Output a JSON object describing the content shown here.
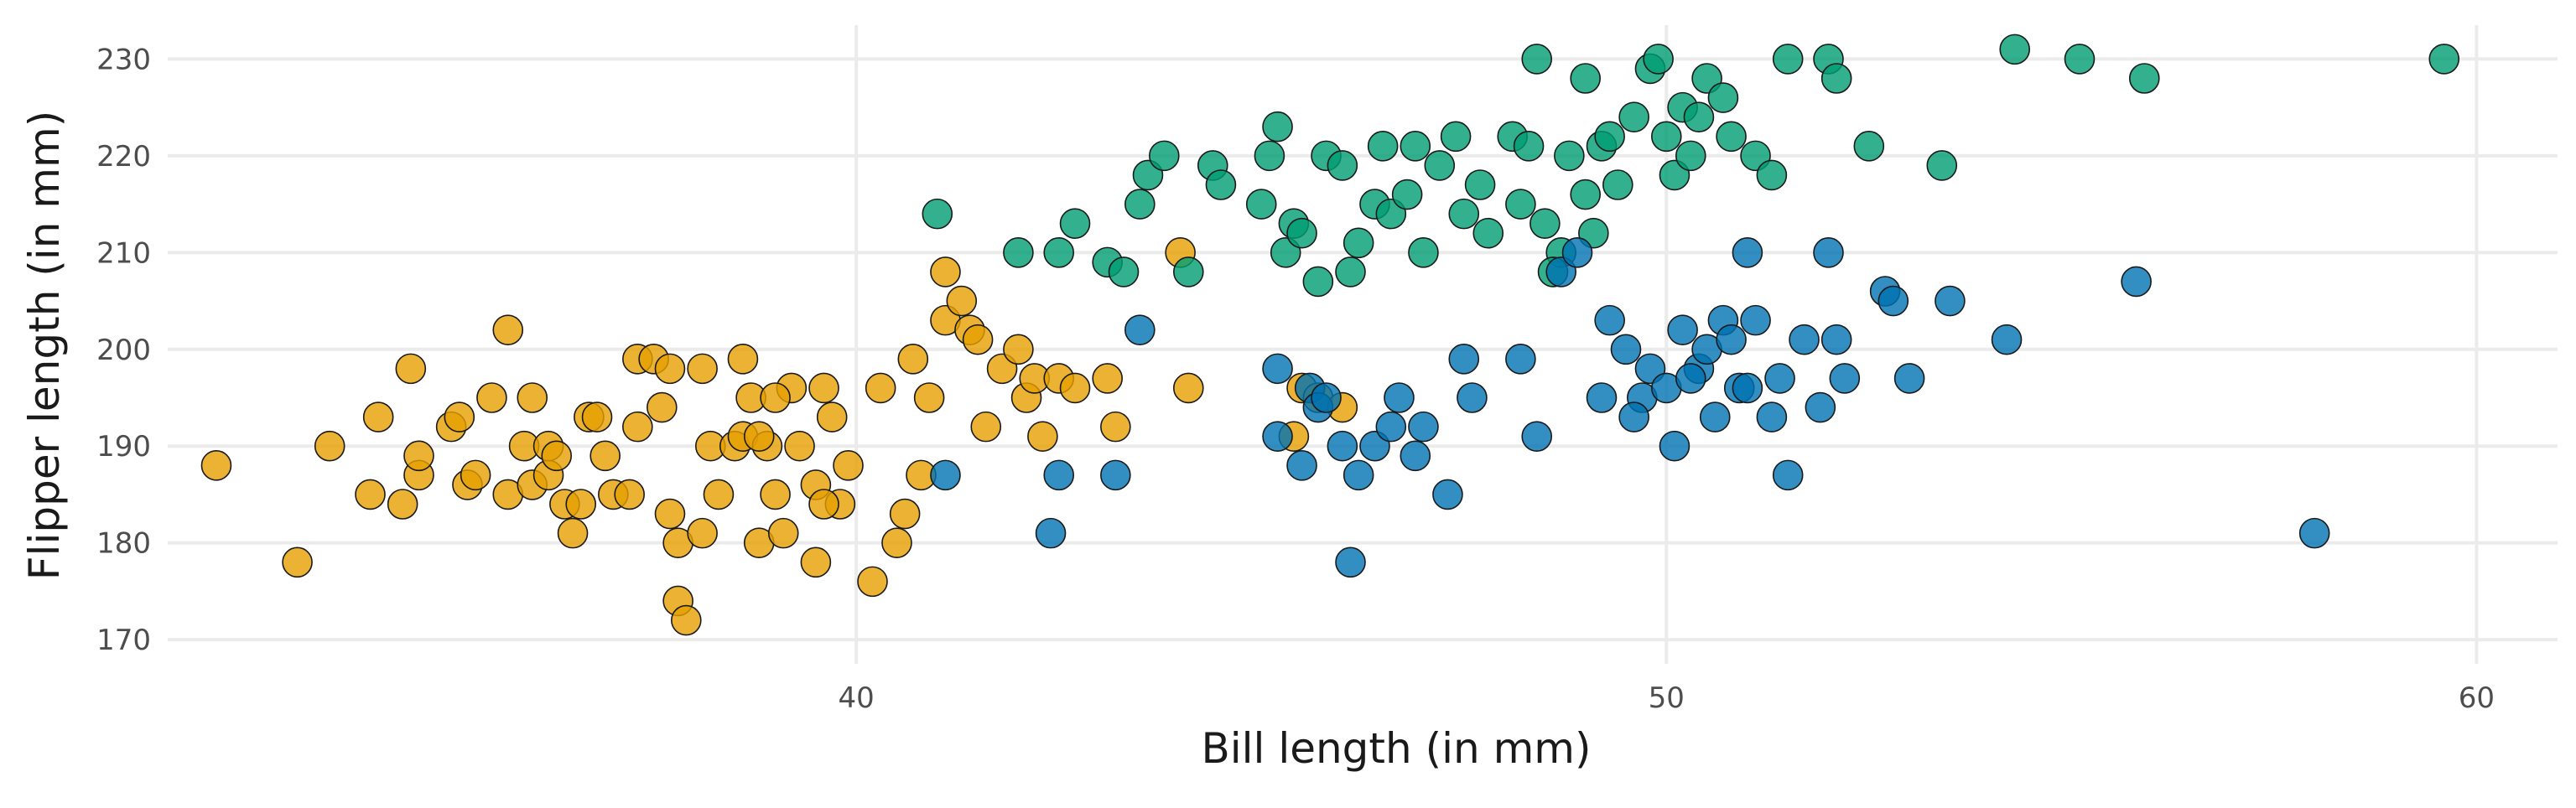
{
  "chart_data": {
    "type": "scatter",
    "xlabel": "Bill length (in mm)",
    "ylabel": "Flipper length (in mm)",
    "xlim": [
      31.5,
      61.0
    ],
    "ylim": [
      167.5,
      233.5
    ],
    "xticks": [
      40,
      50,
      60
    ],
    "yticks": [
      170,
      180,
      190,
      200,
      210,
      220,
      230
    ],
    "grid": true,
    "legend": "none",
    "series": [
      {
        "color": "#E69F00",
        "points": [
          [
            32.1,
            188
          ],
          [
            33.1,
            178
          ],
          [
            33.5,
            190
          ],
          [
            34.0,
            185
          ],
          [
            34.1,
            193
          ],
          [
            34.4,
            184
          ],
          [
            34.5,
            198
          ],
          [
            34.6,
            187
          ],
          [
            34.6,
            189
          ],
          [
            35.0,
            192
          ],
          [
            35.1,
            193
          ],
          [
            35.2,
            186
          ],
          [
            35.3,
            187
          ],
          [
            35.5,
            195
          ],
          [
            35.7,
            202
          ],
          [
            35.7,
            185
          ],
          [
            35.9,
            190
          ],
          [
            36.0,
            195
          ],
          [
            36.0,
            186
          ],
          [
            36.2,
            187
          ],
          [
            36.2,
            190
          ],
          [
            36.3,
            189
          ],
          [
            36.4,
            184
          ],
          [
            36.5,
            181
          ],
          [
            36.6,
            184
          ],
          [
            36.7,
            193
          ],
          [
            36.8,
            193
          ],
          [
            36.9,
            189
          ],
          [
            37.0,
            185
          ],
          [
            37.2,
            185
          ],
          [
            37.3,
            192
          ],
          [
            37.3,
            199
          ],
          [
            37.5,
            199
          ],
          [
            37.6,
            194
          ],
          [
            37.7,
            198
          ],
          [
            37.7,
            183
          ],
          [
            37.8,
            180
          ],
          [
            37.8,
            174
          ],
          [
            37.9,
            172
          ],
          [
            38.1,
            198
          ],
          [
            38.1,
            181
          ],
          [
            38.2,
            190
          ],
          [
            38.3,
            185
          ],
          [
            38.5,
            190
          ],
          [
            38.6,
            191
          ],
          [
            38.6,
            199
          ],
          [
            38.7,
            195
          ],
          [
            38.8,
            180
          ],
          [
            38.9,
            190
          ],
          [
            39.0,
            185
          ],
          [
            39.1,
            181
          ],
          [
            39.2,
            196
          ],
          [
            39.3,
            190
          ],
          [
            39.5,
            186
          ],
          [
            39.5,
            178
          ],
          [
            39.6,
            196
          ],
          [
            39.7,
            193
          ],
          [
            39.8,
            184
          ],
          [
            40.2,
            176
          ],
          [
            40.3,
            196
          ],
          [
            40.5,
            180
          ],
          [
            40.6,
            183
          ],
          [
            40.7,
            199
          ],
          [
            40.8,
            187
          ],
          [
            40.9,
            195
          ],
          [
            41.1,
            203
          ],
          [
            41.1,
            208
          ],
          [
            41.3,
            205
          ],
          [
            41.4,
            202
          ],
          [
            41.5,
            201
          ],
          [
            41.6,
            192
          ],
          [
            41.8,
            198
          ],
          [
            42.0,
            200
          ],
          [
            42.1,
            195
          ],
          [
            42.2,
            197
          ],
          [
            42.3,
            191
          ],
          [
            42.5,
            197
          ],
          [
            42.7,
            196
          ],
          [
            43.1,
            197
          ],
          [
            43.2,
            192
          ],
          [
            44.1,
            196
          ],
          [
            44.0,
            210
          ],
          [
            45.4,
            191
          ],
          [
            45.5,
            196
          ],
          [
            45.7,
            195
          ],
          [
            46.0,
            194
          ],
          [
            39.9,
            188
          ],
          [
            39.6,
            184
          ],
          [
            39.0,
            195
          ],
          [
            38.8,
            191
          ]
        ]
      },
      {
        "color": "#009E73",
        "points": [
          [
            41.0,
            214
          ],
          [
            42.0,
            210
          ],
          [
            42.5,
            210
          ],
          [
            42.7,
            213
          ],
          [
            43.1,
            209
          ],
          [
            43.3,
            208
          ],
          [
            43.5,
            215
          ],
          [
            43.6,
            218
          ],
          [
            43.8,
            220
          ],
          [
            44.1,
            208
          ],
          [
            44.4,
            219
          ],
          [
            44.5,
            217
          ],
          [
            45.0,
            215
          ],
          [
            45.1,
            220
          ],
          [
            45.2,
            223
          ],
          [
            45.3,
            210
          ],
          [
            45.4,
            213
          ],
          [
            45.5,
            212
          ],
          [
            45.7,
            207
          ],
          [
            45.8,
            220
          ],
          [
            46.0,
            219
          ],
          [
            46.2,
            211
          ],
          [
            46.4,
            215
          ],
          [
            46.5,
            221
          ],
          [
            46.6,
            214
          ],
          [
            46.8,
            216
          ],
          [
            46.9,
            221
          ],
          [
            47.0,
            210
          ],
          [
            47.2,
            219
          ],
          [
            47.4,
            222
          ],
          [
            47.5,
            214
          ],
          [
            47.7,
            217
          ],
          [
            47.8,
            212
          ],
          [
            48.1,
            222
          ],
          [
            48.2,
            215
          ],
          [
            48.3,
            221
          ],
          [
            48.5,
            213
          ],
          [
            48.7,
            210
          ],
          [
            48.8,
            220
          ],
          [
            49.0,
            216
          ],
          [
            49.1,
            212
          ],
          [
            49.2,
            221
          ],
          [
            49.4,
            217
          ],
          [
            49.6,
            224
          ],
          [
            49.8,
            229
          ],
          [
            49.9,
            230
          ],
          [
            50.0,
            222
          ],
          [
            50.1,
            218
          ],
          [
            50.2,
            225
          ],
          [
            50.4,
            224
          ],
          [
            50.5,
            228
          ],
          [
            50.7,
            226
          ],
          [
            50.8,
            222
          ],
          [
            51.1,
            220
          ],
          [
            51.3,
            218
          ],
          [
            51.5,
            230
          ],
          [
            52.0,
            230
          ],
          [
            52.1,
            228
          ],
          [
            52.5,
            221
          ],
          [
            53.4,
            219
          ],
          [
            54.3,
            231
          ],
          [
            55.1,
            230
          ],
          [
            55.9,
            228
          ],
          [
            59.6,
            230
          ],
          [
            48.4,
            230
          ],
          [
            49.0,
            228
          ],
          [
            49.3,
            222
          ],
          [
            50.3,
            220
          ],
          [
            46.1,
            208
          ],
          [
            48.6,
            208
          ]
        ]
      },
      {
        "color": "#0072B2",
        "points": [
          [
            41.1,
            187
          ],
          [
            42.4,
            181
          ],
          [
            42.5,
            187
          ],
          [
            43.2,
            187
          ],
          [
            43.5,
            202
          ],
          [
            45.2,
            198
          ],
          [
            45.2,
            191
          ],
          [
            45.5,
            188
          ],
          [
            45.6,
            196
          ],
          [
            45.7,
            194
          ],
          [
            45.8,
            195
          ],
          [
            46.0,
            190
          ],
          [
            46.1,
            178
          ],
          [
            46.2,
            187
          ],
          [
            46.4,
            190
          ],
          [
            46.6,
            192
          ],
          [
            46.7,
            195
          ],
          [
            46.9,
            189
          ],
          [
            47.0,
            192
          ],
          [
            47.3,
            185
          ],
          [
            47.5,
            199
          ],
          [
            47.6,
            195
          ],
          [
            48.2,
            199
          ],
          [
            48.4,
            191
          ],
          [
            48.7,
            208
          ],
          [
            48.9,
            210
          ],
          [
            49.2,
            195
          ],
          [
            49.3,
            203
          ],
          [
            49.5,
            200
          ],
          [
            49.7,
            195
          ],
          [
            49.8,
            198
          ],
          [
            50.0,
            196
          ],
          [
            50.1,
            190
          ],
          [
            50.2,
            202
          ],
          [
            50.4,
            198
          ],
          [
            50.5,
            200
          ],
          [
            50.6,
            193
          ],
          [
            50.7,
            203
          ],
          [
            50.8,
            201
          ],
          [
            50.9,
            196
          ],
          [
            51.0,
            210
          ],
          [
            51.1,
            203
          ],
          [
            51.3,
            193
          ],
          [
            51.4,
            197
          ],
          [
            51.5,
            187
          ],
          [
            51.7,
            201
          ],
          [
            51.9,
            194
          ],
          [
            52.2,
            197
          ],
          [
            52.7,
            206
          ],
          [
            52.8,
            205
          ],
          [
            53.5,
            205
          ],
          [
            54.2,
            201
          ],
          [
            55.8,
            207
          ],
          [
            58.0,
            181
          ],
          [
            52.0,
            210
          ],
          [
            52.1,
            201
          ],
          [
            53.0,
            197
          ],
          [
            49.6,
            193
          ],
          [
            50.3,
            197
          ],
          [
            51.0,
            196
          ]
        ]
      }
    ]
  }
}
